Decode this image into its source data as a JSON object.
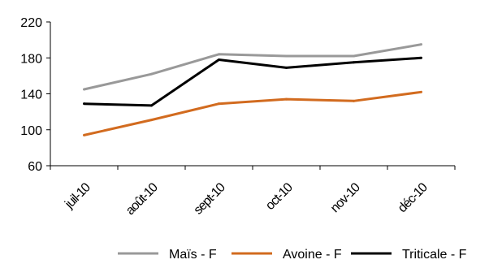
{
  "chart_data": {
    "type": "line",
    "categories": [
      "juil-10",
      "août-10",
      "sept-10",
      "oct-10",
      "nov-10",
      "déc-10"
    ],
    "series": [
      {
        "name": "Maïs - F",
        "color": "#999999",
        "values": [
          145,
          162,
          184,
          182,
          182,
          195
        ]
      },
      {
        "name": "Avoine - F",
        "color": "#d26b1f",
        "values": [
          94,
          111,
          129,
          134,
          132,
          142
        ]
      },
      {
        "name": "Triticale - F",
        "color": "#000000",
        "values": [
          129,
          127,
          178,
          169,
          175,
          180
        ]
      }
    ],
    "yticks": [
      60,
      100,
      140,
      180,
      220
    ],
    "ylim": [
      60,
      220
    ],
    "grid": false,
    "legend_position": "bottom"
  }
}
